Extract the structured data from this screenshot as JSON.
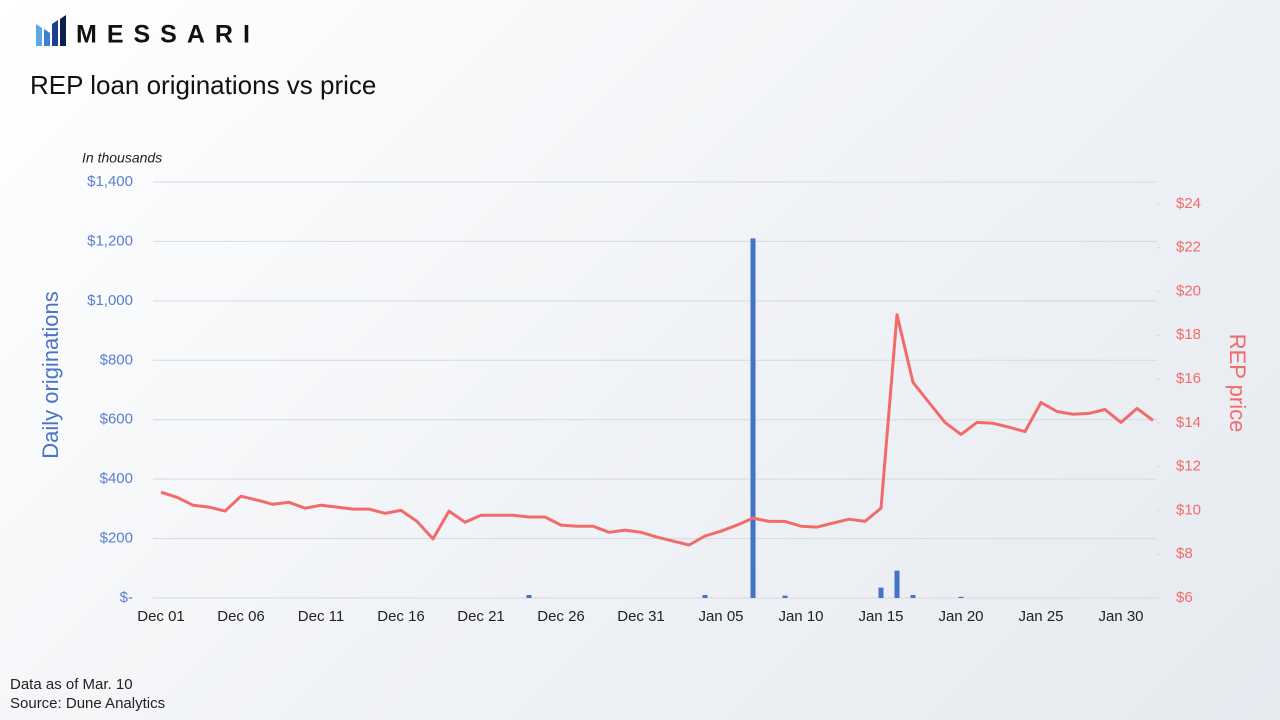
{
  "brand": "MESSARI",
  "chart_data": {
    "type": "bar",
    "title": "REP loan originations vs price",
    "subtitle": "In thousands",
    "notes": [
      "Data as of Mar. 10",
      "Source: Dune Analytics"
    ],
    "categories": [
      "Dec 01",
      null,
      null,
      null,
      null,
      "Dec 06",
      null,
      null,
      null,
      null,
      "Dec 11",
      null,
      null,
      null,
      null,
      "Dec 16",
      null,
      null,
      null,
      null,
      "Dec 21",
      null,
      null,
      null,
      null,
      "Dec 26",
      null,
      null,
      null,
      null,
      "Dec 31",
      null,
      null,
      null,
      null,
      "Jan 05",
      null,
      null,
      null,
      null,
      "Jan 10",
      null,
      null,
      null,
      null,
      "Jan 15",
      null,
      null,
      null,
      null,
      "Jan 20",
      null,
      null,
      null,
      null,
      "Jan 25",
      null,
      null,
      null,
      null,
      "Jan 30",
      null,
      null
    ],
    "series": [
      {
        "name": "Daily originations",
        "type": "bar",
        "color": "#4472c4",
        "values": [
          0,
          0,
          0,
          0,
          0,
          0,
          0,
          0,
          0,
          0,
          0,
          0,
          0,
          0,
          0,
          0,
          0,
          0,
          0,
          0,
          0,
          0,
          0,
          10,
          0,
          0,
          0,
          0,
          0,
          0,
          0,
          0,
          0,
          0,
          10,
          0,
          0,
          1210,
          0,
          8,
          0,
          0,
          0,
          0,
          0,
          35,
          92,
          10,
          0,
          0,
          4,
          0,
          0,
          0,
          0,
          0,
          0,
          0,
          0,
          0,
          0,
          0,
          0
        ]
      },
      {
        "name": "REP price",
        "type": "line",
        "axis": "y2",
        "color": "#f26b6b",
        "values": [
          10.83,
          10.6,
          10.24,
          10.15,
          9.97,
          10.65,
          10.47,
          10.28,
          10.37,
          10.1,
          10.24,
          10.15,
          10.06,
          10.06,
          9.87,
          10.0,
          9.5,
          8.7,
          9.97,
          9.46,
          9.78,
          9.78,
          9.78,
          9.7,
          9.7,
          9.33,
          9.28,
          9.28,
          9.0,
          9.1,
          9.0,
          8.78,
          8.6,
          8.42,
          8.83,
          9.05,
          9.33,
          9.65,
          9.5,
          9.5,
          9.28,
          9.24,
          9.42,
          9.6,
          9.5,
          10.1,
          18.94,
          15.85,
          14.93,
          14.02,
          13.47,
          14.02,
          13.98,
          13.8,
          13.6,
          14.93,
          14.52,
          14.39,
          14.43,
          14.61,
          14.02,
          14.66,
          14.11
        ]
      }
    ],
    "ylim": [
      0,
      1400
    ],
    "yticks": [
      {
        "value": 0,
        "label": "$-"
      },
      {
        "value": 200,
        "label": "$200"
      },
      {
        "value": 400,
        "label": "$400"
      },
      {
        "value": 600,
        "label": "$600"
      },
      {
        "value": 800,
        "label": "$800"
      },
      {
        "value": 1000,
        "label": "$1,000"
      },
      {
        "value": 1200,
        "label": "$1,200"
      },
      {
        "value": 1400,
        "label": "$1,400"
      }
    ],
    "y2lim": [
      6,
      25
    ],
    "y2ticks": [
      {
        "value": 6,
        "label": "$6"
      },
      {
        "value": 8,
        "label": "$8"
      },
      {
        "value": 10,
        "label": "$10"
      },
      {
        "value": 12,
        "label": "$12"
      },
      {
        "value": 14,
        "label": "$14"
      },
      {
        "value": 16,
        "label": "$16"
      },
      {
        "value": 18,
        "label": "$18"
      },
      {
        "value": 20,
        "label": "$20"
      },
      {
        "value": 22,
        "label": "$22"
      },
      {
        "value": 24,
        "label": "$24"
      }
    ],
    "grid": true
  }
}
